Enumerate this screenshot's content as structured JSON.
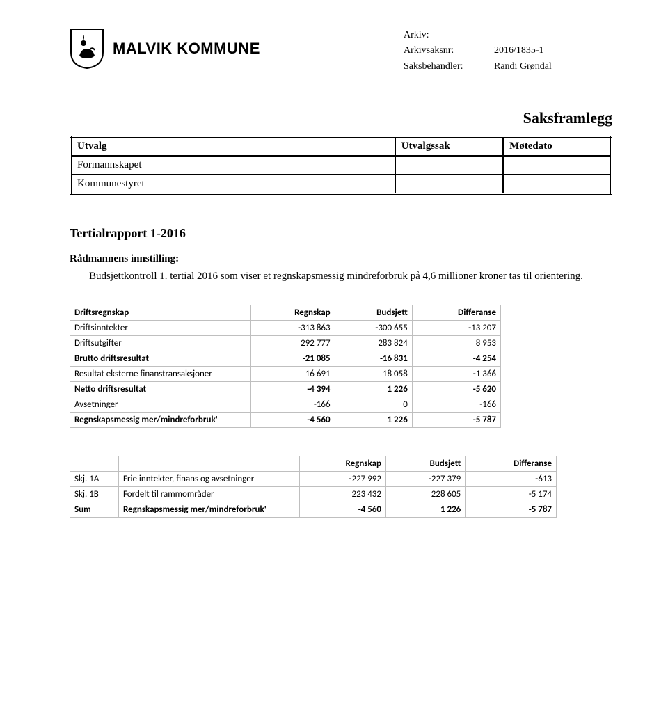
{
  "header": {
    "org_name": "MALVIK KOMMUNE",
    "meta": {
      "arkiv_label": "Arkiv:",
      "arkiv_value": "",
      "arkivsaksnr_label": "Arkivsaksnr:",
      "arkivsaksnr_value": "2016/1835-1",
      "saksbehandler_label": "Saksbehandler:",
      "saksbehandler_value": "Randi Grøndal"
    }
  },
  "saksframlegg": "Saksframlegg",
  "utvalg_table": {
    "headers": {
      "utvalg": "Utvalg",
      "utvalgssak": "Utvalgssak",
      "motedato": "Møtedato"
    },
    "rows": [
      {
        "utvalg": "Formannskapet",
        "utvalgssak": "",
        "motedato": ""
      },
      {
        "utvalg": "Kommunestyret",
        "utvalgssak": "",
        "motedato": ""
      }
    ]
  },
  "section_title": "Tertialrapport 1-2016",
  "sub_title": "Rådmannens innstilling:",
  "body_text": "Budsjettkontroll 1. tertial 2016 som viser et regnskapsmessig mindreforbruk på 4,6 millioner kroner tas til orientering.",
  "table1": {
    "headers": [
      "Driftsregnskap",
      "Regnskap",
      "Budsjett",
      "Differanse"
    ],
    "rows": [
      {
        "label": "Driftsinntekter",
        "r": "-313 863",
        "b": "-300 655",
        "d": "-13 207",
        "bold": false
      },
      {
        "label": "Driftsutgifter",
        "r": "292 777",
        "b": "283 824",
        "d": "8 953",
        "bold": false
      },
      {
        "label": "Brutto driftsresultat",
        "r": "-21 085",
        "b": "-16 831",
        "d": "-4 254",
        "bold": true
      },
      {
        "label": "Resultat eksterne finanstransaksjoner",
        "r": "16 691",
        "b": "18 058",
        "d": "-1 366",
        "bold": false
      },
      {
        "label": "Netto driftsresultat",
        "r": "-4 394",
        "b": "1 226",
        "d": "-5 620",
        "bold": true
      },
      {
        "label": "Avsetninger",
        "r": "-166",
        "b": "0",
        "d": "-166",
        "bold": false
      },
      {
        "label": "Regnskapsmessig mer/mindreforbruk'",
        "r": "-4 560",
        "b": "1 226",
        "d": "-5 787",
        "bold": true
      }
    ]
  },
  "table2": {
    "headers": [
      "",
      "",
      "Regnskap",
      "Budsjett",
      "Differanse"
    ],
    "rows": [
      {
        "code": "Skj. 1A",
        "label": "Frie inntekter, finans og avsetninger",
        "r": "-227 992",
        "b": "-227 379",
        "d": "-613",
        "bold": false
      },
      {
        "code": "Skj. 1B",
        "label": "Fordelt til rammområder",
        "r": "223 432",
        "b": "228 605",
        "d": "-5 174",
        "bold": false
      },
      {
        "code": "Sum",
        "label": "Regnskapsmessig mer/mindreforbruk'",
        "r": "-4 560",
        "b": "1 226",
        "d": "-5 787",
        "bold": true
      }
    ]
  },
  "colors": {
    "text": "#000000",
    "border_dark": "#000000",
    "border_light": "#bfbfbf",
    "background": "#ffffff"
  }
}
